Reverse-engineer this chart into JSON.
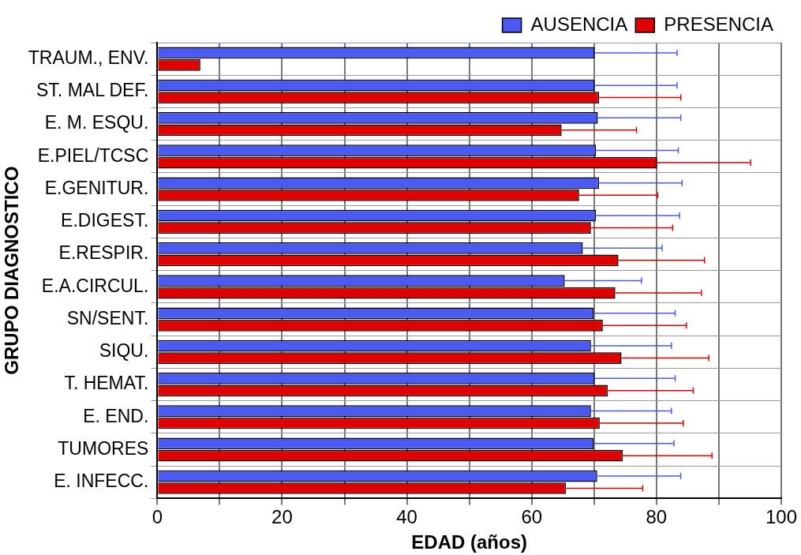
{
  "chart_data": {
    "type": "bar",
    "orientation": "horizontal",
    "xlabel": "EDAD (años)",
    "ylabel": "GRUPO DIAGNOSTICO",
    "categories": [
      "TRAUM., ENV.",
      "ST. MAL DEF.",
      "E. M. ESQU.",
      "E.PIEL/TCSC",
      "E.GENITUR.",
      "E.DIGEST.",
      "E.RESPIR.",
      "E.A.CIRCUL.",
      "SN/SENT.",
      "SIQU.",
      "T. HEMAT.",
      "E. END.",
      "TUMORES",
      "E. INFECC."
    ],
    "series": [
      {
        "name": "AUSENCIA",
        "color": "#4a5af2",
        "values": [
          70.1,
          70.1,
          70.6,
          70.3,
          70.8,
          70.3,
          68.2,
          65.3,
          69.9,
          69.5,
          70.1,
          69.5,
          69.9,
          70.5
        ],
        "errors": [
          [
            70.1,
            83.3
          ],
          [
            70.1,
            83.3
          ],
          [
            70.6,
            83.9
          ],
          [
            70.3,
            83.5
          ],
          [
            70.8,
            84.1
          ],
          [
            70.3,
            83.7
          ],
          [
            68.2,
            80.9
          ],
          [
            65.3,
            77.6
          ],
          [
            69.9,
            83.0
          ],
          [
            69.5,
            82.4
          ],
          [
            70.1,
            83.0
          ],
          [
            69.5,
            82.4
          ],
          [
            69.9,
            82.8
          ],
          [
            70.5,
            83.9
          ]
        ]
      },
      {
        "name": "PRESENCIA",
        "color": "#e00000",
        "values": [
          6.9,
          70.8,
          64.8,
          80.1,
          67.6,
          69.5,
          73.9,
          73.4,
          71.4,
          74.4,
          72.2,
          70.9,
          74.6,
          65.5
        ],
        "errors": [
          null,
          [
            70.8,
            83.9
          ],
          [
            64.8,
            76.8
          ],
          [
            80.1,
            95.1
          ],
          [
            67.6,
            80.2
          ],
          [
            69.5,
            82.6
          ],
          [
            73.9,
            87.7
          ],
          [
            73.4,
            87.2
          ],
          [
            71.4,
            84.8
          ],
          [
            74.4,
            88.4
          ],
          [
            72.2,
            85.9
          ],
          [
            70.9,
            84.3
          ],
          [
            74.6,
            88.9
          ],
          [
            65.5,
            77.8
          ]
        ]
      }
    ],
    "xlim": [
      0,
      100
    ],
    "xticks": [
      0,
      {
        "value": 10,
        "label": null
      },
      20,
      {
        "value": 30,
        "label": null
      },
      40,
      {
        "value": 50,
        "label": null
      },
      60,
      {
        "value": 70,
        "label": null
      },
      80,
      {
        "value": 90,
        "label": null
      },
      100
    ],
    "grid": true,
    "legend": "top right"
  }
}
